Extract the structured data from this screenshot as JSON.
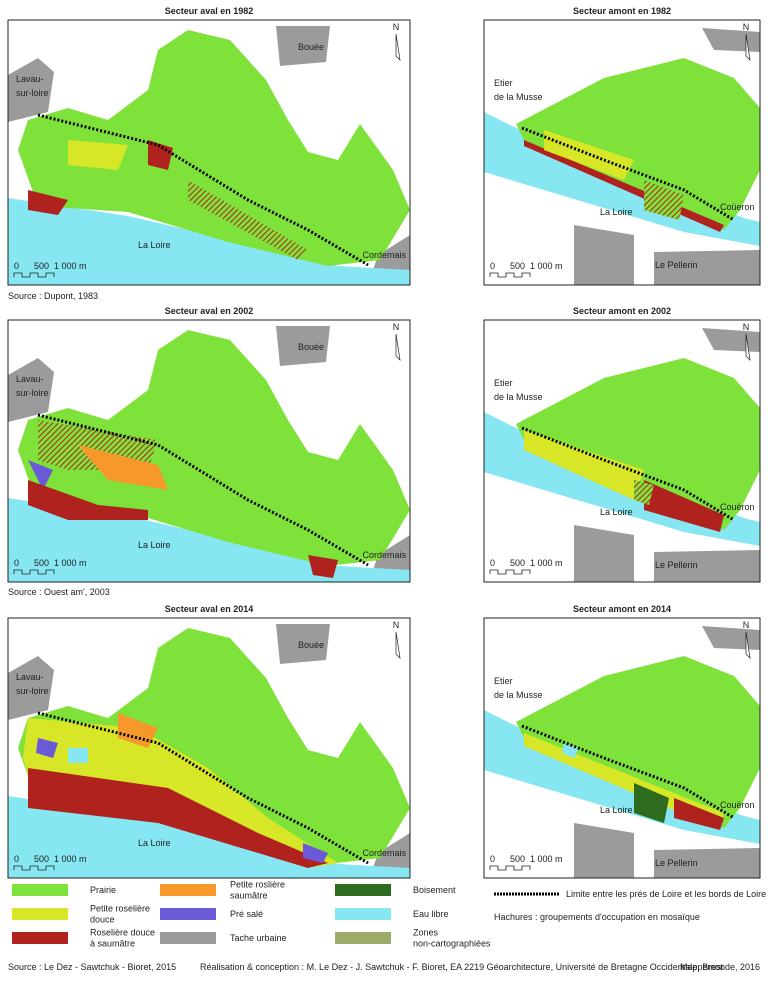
{
  "panels": [
    {
      "title": "Secteur aval en 1982",
      "north": "N",
      "labels": [
        [
          "Bouée"
        ],
        [
          "Lavau-",
          "sur-loire"
        ],
        [
          "La Loire"
        ],
        [
          "Cordemais"
        ]
      ],
      "scale": [
        "0",
        "500",
        "1 000 m"
      ]
    },
    {
      "title": "Secteur amont en 1982",
      "north": "N",
      "labels": [
        [
          "Etier",
          "de la Musse"
        ],
        [
          "La Loire"
        ],
        [
          "Coüeron"
        ],
        [
          "Le Pellerin"
        ]
      ],
      "scale": [
        "0",
        "500",
        "1 000 m"
      ]
    },
    {
      "title": "Secteur aval en 2002",
      "north": "N",
      "labels": [
        [
          "Bouée"
        ],
        [
          "Lavau-",
          "sur-loire"
        ],
        [
          "La Loire"
        ],
        [
          "Cordemais"
        ]
      ],
      "scale": [
        "0",
        "500",
        "1 000 m"
      ]
    },
    {
      "title": "Secteur amont en 2002",
      "north": "N",
      "labels": [
        [
          "Etier",
          "de la Musse"
        ],
        [
          "La Loire"
        ],
        [
          "Couëron"
        ],
        [
          "Le Pellerin"
        ]
      ],
      "scale": [
        "0",
        "500",
        "1 000 m"
      ]
    },
    {
      "title": "Secteur aval en 2014",
      "north": "N",
      "labels": [
        [
          "Bouée"
        ],
        [
          "Lavau-",
          "sur-loire"
        ],
        [
          "La Loire"
        ],
        [
          "Cordemais"
        ]
      ],
      "scale": [
        "0",
        "500",
        "1 000 m"
      ]
    },
    {
      "title": "Secteur amont en 2014",
      "north": "N",
      "labels": [
        [
          "Etier",
          "de la Musse"
        ],
        [
          "La Loire"
        ],
        [
          "Couëron"
        ],
        [
          "Le Pellerin"
        ]
      ],
      "scale": [
        "0",
        "500",
        "1 000 m"
      ]
    }
  ],
  "sources": [
    "Source : Dupont, 1983",
    "Source : Ouest am', 2003"
  ],
  "legend": {
    "items": [
      {
        "label": [
          "Prairie"
        ],
        "color": "#7ee23a"
      },
      {
        "label": [
          "Petite roselière",
          "douce"
        ],
        "color": "#d7e626"
      },
      {
        "label": [
          "Roselière douce",
          "à saumâtre"
        ],
        "color": "#b0221e"
      },
      {
        "label": [
          "Petite roslière",
          "saumâtre"
        ],
        "color": "#f7982a"
      },
      {
        "label": [
          "Pré salé"
        ],
        "color": "#6a5ad8"
      },
      {
        "label": [
          "Tache urbaine"
        ],
        "color": "#9b9b9b"
      },
      {
        "label": [
          "Boisement"
        ],
        "color": "#2f6b1f"
      },
      {
        "label": [
          "Eau libre"
        ],
        "color": "#86e6f2"
      },
      {
        "label": [
          "Zones",
          "non-cartographiées"
        ],
        "color": "#9aab6a"
      }
    ],
    "line": "Limite entre les prés de Loire et les bords de Loire",
    "hatch": "Hachures : groupements d'occupation en mosaïque"
  },
  "footer": {
    "left": "Source : Le Dez - Sawtchuk - Bioret, 2015",
    "center": "Réalisation & conception : M. Le Dez - J. Sawtchuk - F. Bioret, EA 2219 Géoarchitecture, Université de Bretagne Occidentale, Brest",
    "right": "Mappemonde, 2016"
  }
}
